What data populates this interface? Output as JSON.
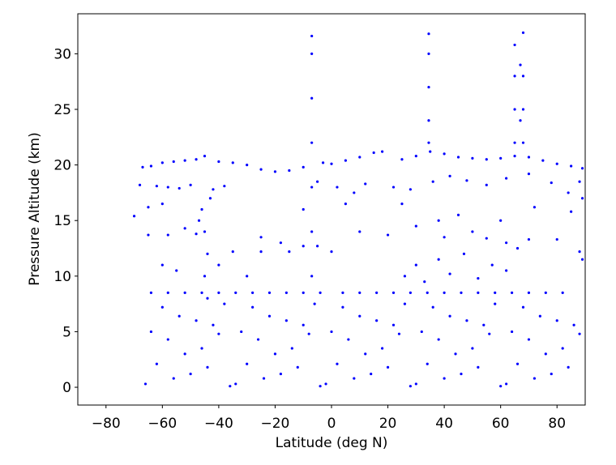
{
  "chart_data": {
    "type": "scatter",
    "xlabel": "Latitude (deg N)",
    "ylabel": "Pressure Altitude (km)",
    "color": "#0000ff",
    "xlim": [
      -90,
      90
    ],
    "ylim": [
      -1.6,
      33.6
    ],
    "xticks": [
      {
        "value": -80,
        "label": "−80"
      },
      {
        "value": -60,
        "label": "−60"
      },
      {
        "value": -40,
        "label": "−40"
      },
      {
        "value": -20,
        "label": "−20"
      },
      0,
      20,
      40,
      60,
      80
    ],
    "yticks": [
      0,
      5,
      10,
      15,
      20,
      25,
      30
    ],
    "x": [
      -67,
      -64,
      -60,
      -56,
      -52,
      -48,
      -45,
      -40,
      -35,
      -30,
      -25,
      -20,
      -15,
      -10,
      -3,
      0,
      5,
      10,
      15,
      18,
      25,
      30,
      35,
      40,
      45,
      50,
      55,
      60,
      65,
      70,
      75,
      80,
      85,
      89,
      -68,
      -62,
      -58,
      -54,
      -50,
      -42,
      -38,
      -5,
      2,
      8,
      12,
      22,
      28,
      36,
      42,
      48,
      55,
      62,
      70,
      78,
      84,
      88,
      -46,
      -45,
      -44,
      -47,
      -43,
      -45,
      -44,
      -70,
      -65,
      -60,
      -10,
      5,
      25,
      45,
      72,
      85,
      89,
      -65,
      -58,
      -52,
      -48,
      -35,
      -25,
      -15,
      -10,
      -5,
      0,
      10,
      20,
      40,
      55,
      62,
      70,
      80,
      88,
      89,
      -64,
      -58,
      -52,
      -46,
      -40,
      -34,
      -28,
      -22,
      -16,
      -10,
      -4,
      4,
      10,
      16,
      22,
      28,
      34,
      40,
      46,
      52,
      58,
      64,
      70,
      76,
      82,
      -66,
      -62,
      -58,
      -54,
      -50,
      -46,
      -42,
      -38,
      -34,
      -30,
      -26,
      -22,
      -18,
      -14,
      -10,
      -6,
      -2,
      2,
      6,
      10,
      14,
      18,
      22,
      26,
      30,
      34,
      38,
      42,
      46,
      50,
      54,
      58,
      62,
      66,
      70,
      74,
      78,
      82,
      86,
      -64,
      -60,
      -56,
      -52,
      -48,
      -44,
      -40,
      -36,
      -32,
      -28,
      -24,
      -20,
      -16,
      -12,
      -8,
      -4,
      0,
      4,
      8,
      12,
      16,
      20,
      24,
      28,
      32,
      36,
      40,
      44,
      48,
      52,
      56,
      60,
      64,
      68,
      72,
      76,
      80,
      84,
      88,
      -7,
      -7,
      -7,
      -7,
      -7,
      -7,
      -7,
      34.5,
      34.5,
      34.5,
      34.5,
      34.5,
      65,
      65,
      65,
      65,
      68,
      68,
      68,
      68,
      67,
      67,
      26,
      30,
      33,
      38,
      42,
      47,
      52,
      57,
      62,
      66,
      30,
      38,
      50,
      60,
      -30,
      -55,
      -60,
      -40,
      -25,
      -18
    ],
    "values": [
      19.8,
      19.9,
      20.2,
      20.3,
      20.4,
      20.5,
      20.8,
      20.3,
      20.2,
      20,
      19.6,
      19.4,
      19.5,
      19.8,
      20.2,
      20.1,
      20.4,
      20.7,
      21.1,
      21.2,
      20.5,
      20.8,
      21.2,
      21,
      20.7,
      20.6,
      20.5,
      20.6,
      20.8,
      20.7,
      20.4,
      20.1,
      19.9,
      19.7,
      18.2,
      18.1,
      18,
      17.9,
      18.2,
      17.8,
      18.1,
      18.5,
      18,
      17.5,
      18.3,
      18,
      17.8,
      18.5,
      19,
      18.6,
      18.2,
      18.8,
      19.2,
      18.4,
      17.5,
      18.5,
      16,
      14,
      12,
      15,
      17,
      10,
      8,
      15.4,
      16.2,
      16.5,
      16,
      16.5,
      16.5,
      15.5,
      16.2,
      15.8,
      17,
      13.7,
      13.7,
      14.3,
      13.8,
      12.2,
      12.2,
      12.2,
      12.7,
      12.7,
      12.2,
      14,
      13.7,
      13.5,
      13.4,
      13,
      13.3,
      13.3,
      12.2,
      11.5,
      8.5,
      8.5,
      8.5,
      8.5,
      8.5,
      8.5,
      8.5,
      8.5,
      8.5,
      8.5,
      8.5,
      8.5,
      8.5,
      8.5,
      8.5,
      8.5,
      8.5,
      8.5,
      8.5,
      8.5,
      8.5,
      8.5,
      8.5,
      8.5,
      8.5,
      0.3,
      2.1,
      4.3,
      6.4,
      1.2,
      3.5,
      5.6,
      7.5,
      0.3,
      2.1,
      4.3,
      6.4,
      1.2,
      3.5,
      5.6,
      7.5,
      0.3,
      2.1,
      4.3,
      6.4,
      1.2,
      3.5,
      5.6,
      7.5,
      0.3,
      2.1,
      4.3,
      6.4,
      1.2,
      3.5,
      5.6,
      7.5,
      0.3,
      2.1,
      4.3,
      6.4,
      1.2,
      3.5,
      5.6,
      5,
      7.2,
      0.8,
      3,
      6,
      1.8,
      4.8,
      0.1,
      5,
      7.2,
      0.8,
      3,
      6,
      1.8,
      4.8,
      0.1,
      5,
      7.2,
      0.8,
      3,
      6,
      1.8,
      4.8,
      0.1,
      5,
      7.2,
      0.8,
      3,
      6,
      1.8,
      4.8,
      0.1,
      5,
      7.2,
      0.8,
      3,
      6,
      1.8,
      4.8,
      10,
      14,
      18,
      22,
      26,
      30,
      31.6,
      22,
      24,
      27,
      30,
      31.8,
      22,
      25,
      28,
      30.8,
      22,
      25,
      28,
      31.9,
      24,
      29,
      10,
      11,
      9.5,
      11.5,
      10.2,
      12,
      9.8,
      11,
      10.5,
      12.5,
      14.5,
      15,
      14,
      15,
      10,
      10.5,
      11,
      11,
      13.5,
      13
    ]
  }
}
